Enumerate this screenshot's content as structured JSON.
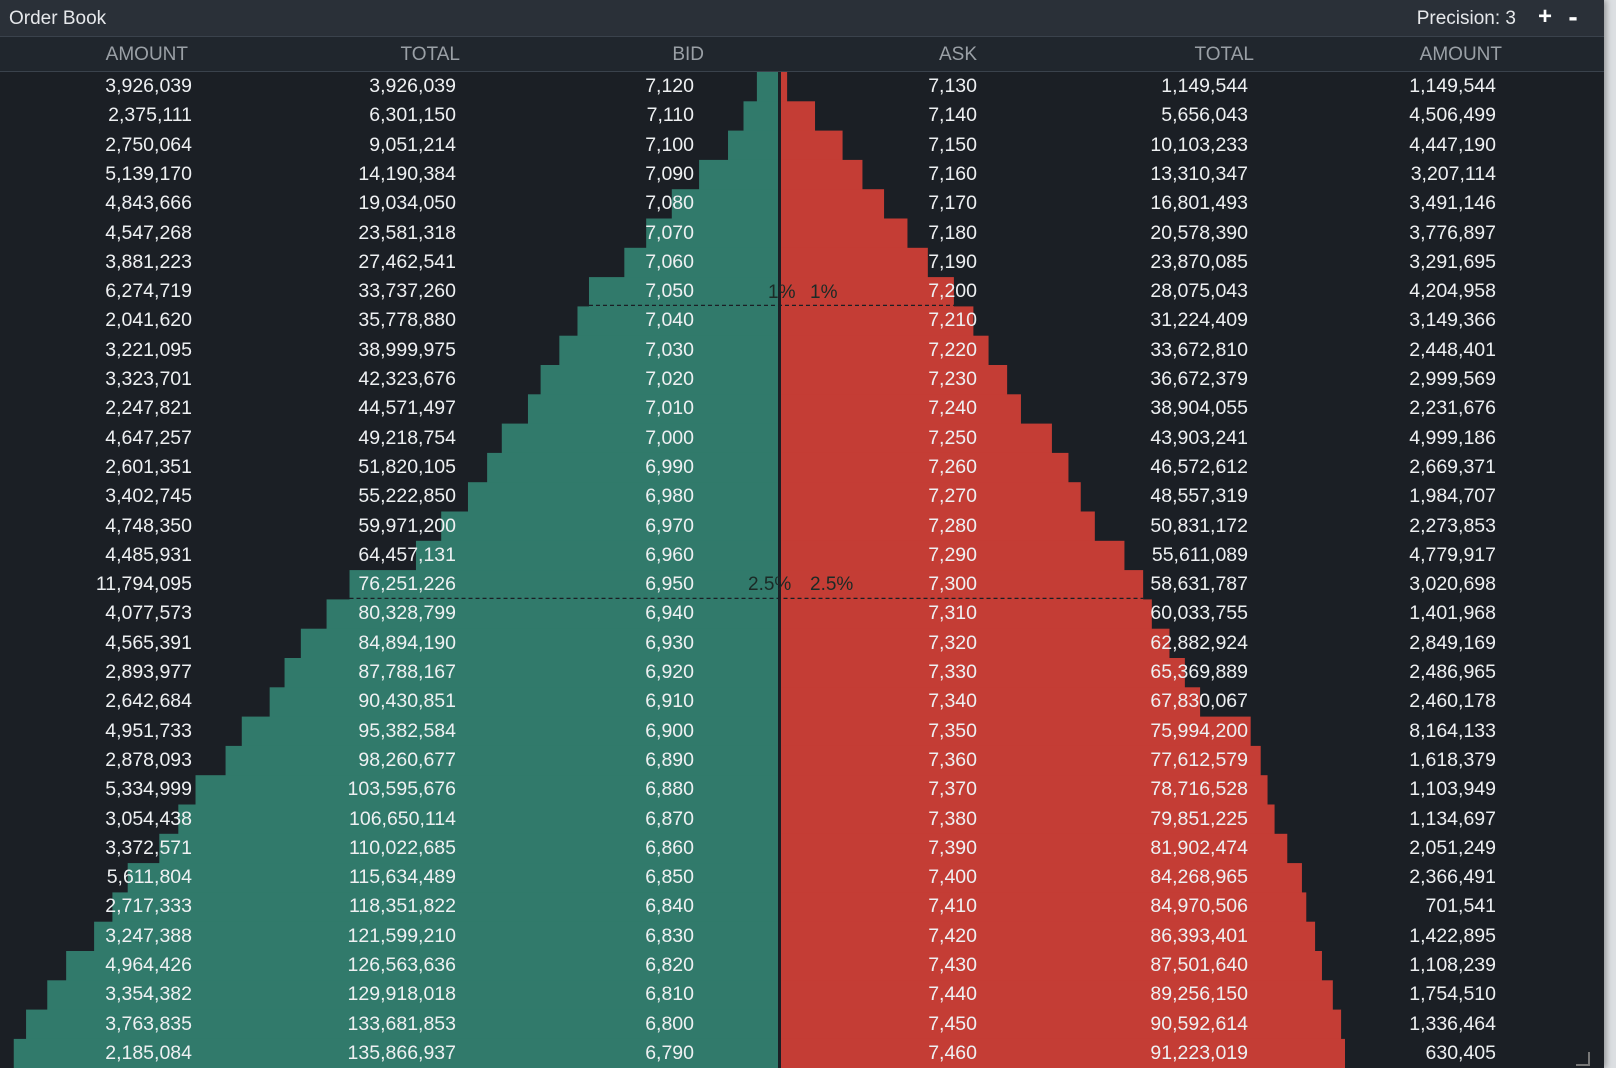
{
  "window": {
    "title": "Order Book",
    "precision_label": "Precision: 3",
    "precision_plus": "+",
    "precision_minus": "-"
  },
  "columns": {
    "bid_amount": "AMOUNT",
    "bid_total": "TOTAL",
    "bid": "BID",
    "ask": "ASK",
    "ask_total": "TOTAL",
    "ask_amount": "AMOUNT"
  },
  "markers": {
    "one_percent": "1%",
    "two_half_percent": "2.5%"
  },
  "colors": {
    "bid_fill": "#317a6b",
    "ask_fill": "#c43d35",
    "background": "#1b1f25",
    "center_line": "#1b1f25"
  },
  "rows": [
    {
      "bid_amount": "3,926,039",
      "bid_total": "3,926,039",
      "bid": "7,120",
      "ask": "7,130",
      "ask_total": "1,149,544",
      "ask_amount": "1,149,544"
    },
    {
      "bid_amount": "2,375,111",
      "bid_total": "6,301,150",
      "bid": "7,110",
      "ask": "7,140",
      "ask_total": "5,656,043",
      "ask_amount": "4,506,499"
    },
    {
      "bid_amount": "2,750,064",
      "bid_total": "9,051,214",
      "bid": "7,100",
      "ask": "7,150",
      "ask_total": "10,103,233",
      "ask_amount": "4,447,190"
    },
    {
      "bid_amount": "5,139,170",
      "bid_total": "14,190,384",
      "bid": "7,090",
      "ask": "7,160",
      "ask_total": "13,310,347",
      "ask_amount": "3,207,114"
    },
    {
      "bid_amount": "4,843,666",
      "bid_total": "19,034,050",
      "bid": "7,080",
      "ask": "7,170",
      "ask_total": "16,801,493",
      "ask_amount": "3,491,146"
    },
    {
      "bid_amount": "4,547,268",
      "bid_total": "23,581,318",
      "bid": "7,070",
      "ask": "7,180",
      "ask_total": "20,578,390",
      "ask_amount": "3,776,897"
    },
    {
      "bid_amount": "3,881,223",
      "bid_total": "27,462,541",
      "bid": "7,060",
      "ask": "7,190",
      "ask_total": "23,870,085",
      "ask_amount": "3,291,695"
    },
    {
      "bid_amount": "6,274,719",
      "bid_total": "33,737,260",
      "bid": "7,050",
      "ask": "7,200",
      "ask_total": "28,075,043",
      "ask_amount": "4,204,958"
    },
    {
      "bid_amount": "2,041,620",
      "bid_total": "35,778,880",
      "bid": "7,040",
      "ask": "7,210",
      "ask_total": "31,224,409",
      "ask_amount": "3,149,366"
    },
    {
      "bid_amount": "3,221,095",
      "bid_total": "38,999,975",
      "bid": "7,030",
      "ask": "7,220",
      "ask_total": "33,672,810",
      "ask_amount": "2,448,401"
    },
    {
      "bid_amount": "3,323,701",
      "bid_total": "42,323,676",
      "bid": "7,020",
      "ask": "7,230",
      "ask_total": "36,672,379",
      "ask_amount": "2,999,569"
    },
    {
      "bid_amount": "2,247,821",
      "bid_total": "44,571,497",
      "bid": "7,010",
      "ask": "7,240",
      "ask_total": "38,904,055",
      "ask_amount": "2,231,676"
    },
    {
      "bid_amount": "4,647,257",
      "bid_total": "49,218,754",
      "bid": "7,000",
      "ask": "7,250",
      "ask_total": "43,903,241",
      "ask_amount": "4,999,186"
    },
    {
      "bid_amount": "2,601,351",
      "bid_total": "51,820,105",
      "bid": "6,990",
      "ask": "7,260",
      "ask_total": "46,572,612",
      "ask_amount": "2,669,371"
    },
    {
      "bid_amount": "3,402,745",
      "bid_total": "55,222,850",
      "bid": "6,980",
      "ask": "7,270",
      "ask_total": "48,557,319",
      "ask_amount": "1,984,707"
    },
    {
      "bid_amount": "4,748,350",
      "bid_total": "59,971,200",
      "bid": "6,970",
      "ask": "7,280",
      "ask_total": "50,831,172",
      "ask_amount": "2,273,853"
    },
    {
      "bid_amount": "4,485,931",
      "bid_total": "64,457,131",
      "bid": "6,960",
      "ask": "7,290",
      "ask_total": "55,611,089",
      "ask_amount": "4,779,917"
    },
    {
      "bid_amount": "11,794,095",
      "bid_total": "76,251,226",
      "bid": "6,950",
      "ask": "7,300",
      "ask_total": "58,631,787",
      "ask_amount": "3,020,698"
    },
    {
      "bid_amount": "4,077,573",
      "bid_total": "80,328,799",
      "bid": "6,940",
      "ask": "7,310",
      "ask_total": "60,033,755",
      "ask_amount": "1,401,968"
    },
    {
      "bid_amount": "4,565,391",
      "bid_total": "84,894,190",
      "bid": "6,930",
      "ask": "7,320",
      "ask_total": "62,882,924",
      "ask_amount": "2,849,169"
    },
    {
      "bid_amount": "2,893,977",
      "bid_total": "87,788,167",
      "bid": "6,920",
      "ask": "7,330",
      "ask_total": "65,369,889",
      "ask_amount": "2,486,965"
    },
    {
      "bid_amount": "2,642,684",
      "bid_total": "90,430,851",
      "bid": "6,910",
      "ask": "7,340",
      "ask_total": "67,830,067",
      "ask_amount": "2,460,178"
    },
    {
      "bid_amount": "4,951,733",
      "bid_total": "95,382,584",
      "bid": "6,900",
      "ask": "7,350",
      "ask_total": "75,994,200",
      "ask_amount": "8,164,133"
    },
    {
      "bid_amount": "2,878,093",
      "bid_total": "98,260,677",
      "bid": "6,890",
      "ask": "7,360",
      "ask_total": "77,612,579",
      "ask_amount": "1,618,379"
    },
    {
      "bid_amount": "5,334,999",
      "bid_total": "103,595,676",
      "bid": "6,880",
      "ask": "7,370",
      "ask_total": "78,716,528",
      "ask_amount": "1,103,949"
    },
    {
      "bid_amount": "3,054,438",
      "bid_total": "106,650,114",
      "bid": "6,870",
      "ask": "7,380",
      "ask_total": "79,851,225",
      "ask_amount": "1,134,697"
    },
    {
      "bid_amount": "3,372,571",
      "bid_total": "110,022,685",
      "bid": "6,860",
      "ask": "7,390",
      "ask_total": "81,902,474",
      "ask_amount": "2,051,249"
    },
    {
      "bid_amount": "5,611,804",
      "bid_total": "115,634,489",
      "bid": "6,850",
      "ask": "7,400",
      "ask_total": "84,268,965",
      "ask_amount": "2,366,491"
    },
    {
      "bid_amount": "2,717,333",
      "bid_total": "118,351,822",
      "bid": "6,840",
      "ask": "7,410",
      "ask_total": "84,970,506",
      "ask_amount": "701,541"
    },
    {
      "bid_amount": "3,247,388",
      "bid_total": "121,599,210",
      "bid": "6,830",
      "ask": "7,420",
      "ask_total": "86,393,401",
      "ask_amount": "1,422,895"
    },
    {
      "bid_amount": "4,964,426",
      "bid_total": "126,563,636",
      "bid": "6,820",
      "ask": "7,430",
      "ask_total": "87,501,640",
      "ask_amount": "1,108,239"
    },
    {
      "bid_amount": "3,354,382",
      "bid_total": "129,918,018",
      "bid": "6,810",
      "ask": "7,440",
      "ask_total": "89,256,150",
      "ask_amount": "1,754,510"
    },
    {
      "bid_amount": "3,763,835",
      "bid_total": "133,681,853",
      "bid": "6,800",
      "ask": "7,450",
      "ask_total": "90,592,614",
      "ask_amount": "1,336,464"
    },
    {
      "bid_amount": "2,185,084",
      "bid_total": "135,866,937",
      "bid": "6,790",
      "ask": "7,460",
      "ask_total": "91,223,019",
      "ask_amount": "630,405"
    }
  ]
}
